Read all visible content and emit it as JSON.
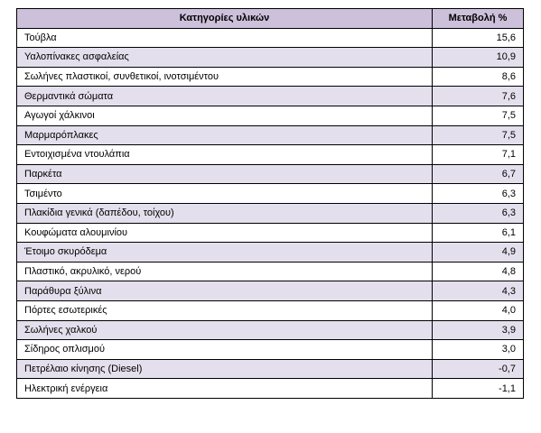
{
  "table": {
    "header": [
      "Κατηγορίες υλικών",
      "Μεταβολή %"
    ],
    "rows": [
      [
        "Τούβλα",
        "15,6"
      ],
      [
        "Υαλοπίνακες ασφαλείας",
        "10,9"
      ],
      [
        "Σωλήνες πλαστικοί, συνθετικοί, ινοτσιμέντου",
        "8,6"
      ],
      [
        "Θερμαντικά σώματα",
        "7,6"
      ],
      [
        "Αγωγοί χάλκινοι",
        "7,5"
      ],
      [
        "Μαρμαρόπλακες",
        "7,5"
      ],
      [
        "Εντοιχισμένα ντουλάπια",
        "7,1"
      ],
      [
        "Παρκέτα",
        "6,7"
      ],
      [
        "Τσιμέντο",
        "6,3"
      ],
      [
        "Πλακίδια γενικά (δαπέδου, τοίχου)",
        "6,3"
      ],
      [
        "Κουφώματα αλουμινίου",
        "6,1"
      ],
      [
        "Έτοιμο σκυρόδεμα",
        "4,9"
      ],
      [
        "Πλαστικό, ακρυλικό, νερού",
        "4,8"
      ],
      [
        "Παράθυρα ξύλινα",
        "4,3"
      ],
      [
        "Πόρτες εσωτερικές",
        "4,0"
      ],
      [
        "Σωλήνες χαλκού",
        "3,9"
      ],
      [
        "Σίδηρος οπλισμού",
        "3,0"
      ],
      [
        "Πετρέλαιο κίνησης (Diesel)",
        "-0,7"
      ],
      [
        "Ηλεκτρική ενέργεια",
        "-1,1"
      ]
    ]
  }
}
